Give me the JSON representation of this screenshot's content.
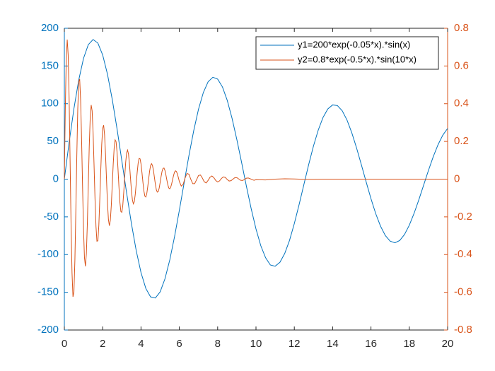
{
  "chart_data": {
    "type": "line",
    "xlim": [
      0,
      20
    ],
    "xticks": [
      0,
      2,
      4,
      6,
      8,
      10,
      12,
      14,
      16,
      18,
      20
    ],
    "ylim": [
      -200,
      200
    ],
    "yticks": [
      -200,
      -150,
      -100,
      -50,
      0,
      50,
      100,
      150,
      200
    ],
    "y_color": "#0072bd",
    "y2lim": [
      -0.8,
      0.8
    ],
    "y2ticks": [
      -0.8,
      -0.6,
      -0.4,
      -0.2,
      0,
      0.2,
      0.4,
      0.6,
      0.8
    ],
    "y2_color": "#d95319",
    "legend": "top-right",
    "series": [
      {
        "name": "y1=200*exp(-0.05*x).*sin(x)",
        "color": "#0072bd",
        "axis": "y",
        "x": [
          0,
          0.25,
          0.5,
          0.75,
          1,
          1.25,
          1.5,
          1.75,
          2,
          2.25,
          2.5,
          2.75,
          3,
          3.25,
          3.5,
          3.75,
          4,
          4.25,
          4.5,
          4.75,
          5,
          5.25,
          5.5,
          5.75,
          6,
          6.25,
          6.5,
          6.75,
          7,
          7.25,
          7.5,
          7.75,
          8,
          8.25,
          8.5,
          8.75,
          9,
          9.25,
          9.5,
          9.75,
          10,
          10.25,
          10.5,
          10.75,
          11,
          11.25,
          11.5,
          11.75,
          12,
          12.25,
          12.5,
          12.75,
          13,
          13.25,
          13.5,
          13.75,
          14,
          14.25,
          14.5,
          14.75,
          15,
          15.25,
          15.5,
          15.75,
          16,
          16.25,
          16.5,
          16.75,
          17,
          17.25,
          17.5,
          17.75,
          18,
          18.25,
          18.5,
          18.75,
          19,
          19.25,
          19.5,
          19.75,
          20
        ],
        "values": [
          0,
          48.9,
          93.5,
          131.3,
          160.1,
          178.3,
          185.1,
          180.3,
          164.6,
          139.1,
          105.6,
          66.5,
          24.3,
          -18.4,
          -58.9,
          -94.8,
          -123.9,
          -144.8,
          -156.1,
          -157.6,
          -149.4,
          -132.1,
          -107.2,
          -76.3,
          -41.4,
          -4.9,
          31.1,
          64.2,
          92.6,
          114.6,
          129,
          135.1,
          132.6,
          122.2,
          104.4,
          80.7,
          52.6,
          22,
          -9.4,
          -39.2,
          -66,
          -88.2,
          -104.1,
          -113.8,
          -115.4,
          -110.2,
          -98.5,
          -81.2,
          -58.9,
          -33.7,
          -7.1,
          19.3,
          43.9,
          65.1,
          81.9,
          93.1,
          98.4,
          97.5,
          90.6,
          78.3,
          61.4,
          41.2,
          19,
          -3.8,
          -25.9,
          -45.9,
          -62.4,
          -74.8,
          -82.2,
          -84.4,
          -81.3,
          -73.4,
          -61.1,
          -45.3,
          -27.2,
          -7.8,
          11.6,
          29.8,
          45.7,
          58.4,
          67.2
        ]
      },
      {
        "name": "y2=0.8*exp(-0.5*x).*sin(10*x)",
        "color": "#d95319",
        "axis": "y2",
        "x": [
          0,
          0.05,
          0.1,
          0.15,
          0.2,
          0.25,
          0.3,
          0.35,
          0.4,
          0.45,
          0.5,
          0.55,
          0.6,
          0.65,
          0.7,
          0.75,
          0.8,
          0.85,
          0.9,
          0.95,
          1,
          1.05,
          1.1,
          1.15,
          1.2,
          1.25,
          1.3,
          1.35,
          1.4,
          1.45,
          1.5,
          1.55,
          1.6,
          1.65,
          1.7,
          1.75,
          1.8,
          1.85,
          1.9,
          1.95,
          2,
          2.05,
          2.1,
          2.15,
          2.2,
          2.25,
          2.3,
          2.35,
          2.4,
          2.45,
          2.5,
          2.55,
          2.6,
          2.65,
          2.7,
          2.75,
          2.8,
          2.85,
          2.9,
          2.95,
          3,
          3.05,
          3.1,
          3.15,
          3.2,
          3.25,
          3.3,
          3.35,
          3.4,
          3.45,
          3.5,
          3.55,
          3.6,
          3.65,
          3.7,
          3.75,
          3.8,
          3.85,
          3.9,
          3.95,
          4,
          4.05,
          4.1,
          4.15,
          4.2,
          4.25,
          4.3,
          4.35,
          4.4,
          4.45,
          4.5,
          4.55,
          4.6,
          4.65,
          4.7,
          4.75,
          4.8,
          4.85,
          4.9,
          4.95,
          5,
          5.05,
          5.1,
          5.15,
          5.2,
          5.25,
          5.3,
          5.35,
          5.4,
          5.45,
          5.5,
          5.55,
          5.6,
          5.65,
          5.7,
          5.75,
          5.8,
          5.85,
          5.9,
          5.95,
          6,
          6.1,
          6.2,
          6.3,
          6.4,
          6.5,
          6.6,
          6.7,
          6.8,
          6.9,
          7,
          7.1,
          7.2,
          7.3,
          7.4,
          7.5,
          7.6,
          7.7,
          7.8,
          7.9,
          8,
          8.1,
          8.2,
          8.3,
          8.4,
          8.5,
          8.6,
          8.7,
          8.8,
          8.9,
          9,
          9.1,
          9.2,
          9.3,
          9.4,
          9.5,
          9.6,
          9.7,
          9.8,
          9.9,
          10,
          10.5,
          11,
          11.5,
          12,
          12.5,
          13,
          13.5,
          14,
          14.5,
          15,
          15.5,
          16,
          16.5,
          17,
          17.5,
          18,
          18.5,
          19,
          19.5,
          20
        ],
        "values": [
          0,
          0.374,
          0.64,
          0.74,
          0.658,
          0.423,
          0.097,
          -0.236,
          -0.496,
          -0.624,
          -0.597,
          -0.429,
          -0.166,
          0.124,
          0.37,
          0.516,
          0.531,
          0.418,
          0.21,
          -0.037,
          -0.264,
          -0.416,
          -0.462,
          -0.394,
          -0.236,
          -0.028,
          0.175,
          0.327,
          0.393,
          0.362,
          0.246,
          0.076,
          -0.104,
          -0.25,
          -0.329,
          -0.327,
          -0.244,
          -0.107,
          0.046,
          0.183,
          0.269,
          0.286,
          0.234,
          0.129,
          -0.002,
          -0.127,
          -0.214,
          -0.247,
          -0.218,
          -0.139,
          -0.03,
          0.08,
          0.166,
          0.208,
          0.198,
          0.142,
          0.053,
          -0.043,
          -0.125,
          -0.172,
          -0.176,
          -0.138,
          -0.069,
          0.014,
          0.089,
          0.139,
          0.154,
          0.131,
          0.077,
          0.008,
          -0.06,
          -0.109,
          -0.131,
          -0.12,
          -0.081,
          -0.024,
          0.035,
          0.084,
          0.11,
          0.108,
          0.081,
          0.035,
          -0.016,
          -0.062,
          -0.09,
          -0.095,
          -0.078,
          -0.042,
          0.002,
          0.043,
          0.072,
          0.082,
          0.072,
          0.046,
          0.009,
          -0.027,
          -0.056,
          -0.069,
          -0.066,
          -0.047,
          -0.017,
          0.015,
          0.042,
          0.057,
          0.059,
          0.046,
          0.022,
          -0.005,
          -0.03,
          -0.047,
          -0.051,
          -0.043,
          -0.025,
          -0.002,
          0.02,
          0.037,
          0.044,
          0.04,
          0.027,
          0.008,
          -0.012,
          -0.037,
          -0.027,
          0.006,
          0.03,
          0.026,
          -0.001,
          -0.024,
          -0.024,
          -0.003,
          0.019,
          0.022,
          0.006,
          -0.014,
          -0.02,
          -0.007,
          0.01,
          0.017,
          0.008,
          -0.007,
          -0.015,
          -0.009,
          0.004,
          0.012,
          0.009,
          -0.002,
          -0.01,
          -0.008,
          0,
          0.008,
          0.008,
          0.001,
          -0.006,
          -0.007,
          -0.002,
          0.005,
          0.006,
          0.002,
          -0.003,
          -0.006,
          -0.003,
          -0.004,
          0,
          0.002,
          0.001,
          -0.001,
          -0.001,
          0,
          0,
          0,
          0,
          0,
          0,
          0,
          0,
          0,
          0,
          0,
          0,
          0,
          0
        ]
      }
    ]
  }
}
